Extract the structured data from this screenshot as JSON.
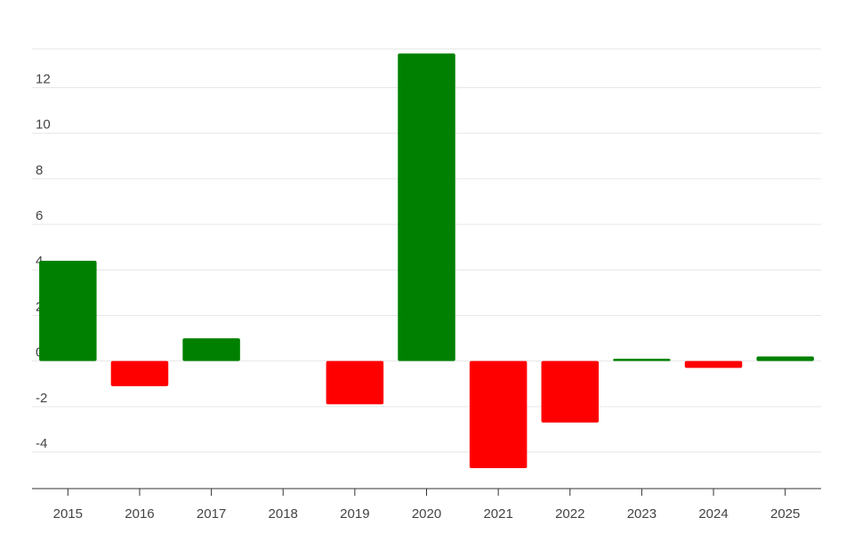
{
  "chart_data": {
    "type": "bar",
    "categories": [
      "2015",
      "2016",
      "2017",
      "2018",
      "2019",
      "2020",
      "2021",
      "2022",
      "2023",
      "2024",
      "2025"
    ],
    "values": [
      4.4,
      -1.1,
      1.0,
      0,
      -1.9,
      13.5,
      -4.7,
      -2.7,
      0.1,
      -0.3,
      0.2
    ],
    "positive_color": "#008000",
    "negative_color": "#ff0000",
    "ylim": [
      -5.6,
      13.7
    ],
    "yticks": [
      -4,
      -2,
      0,
      2,
      4,
      6,
      8,
      10,
      12
    ],
    "grid": true
  }
}
